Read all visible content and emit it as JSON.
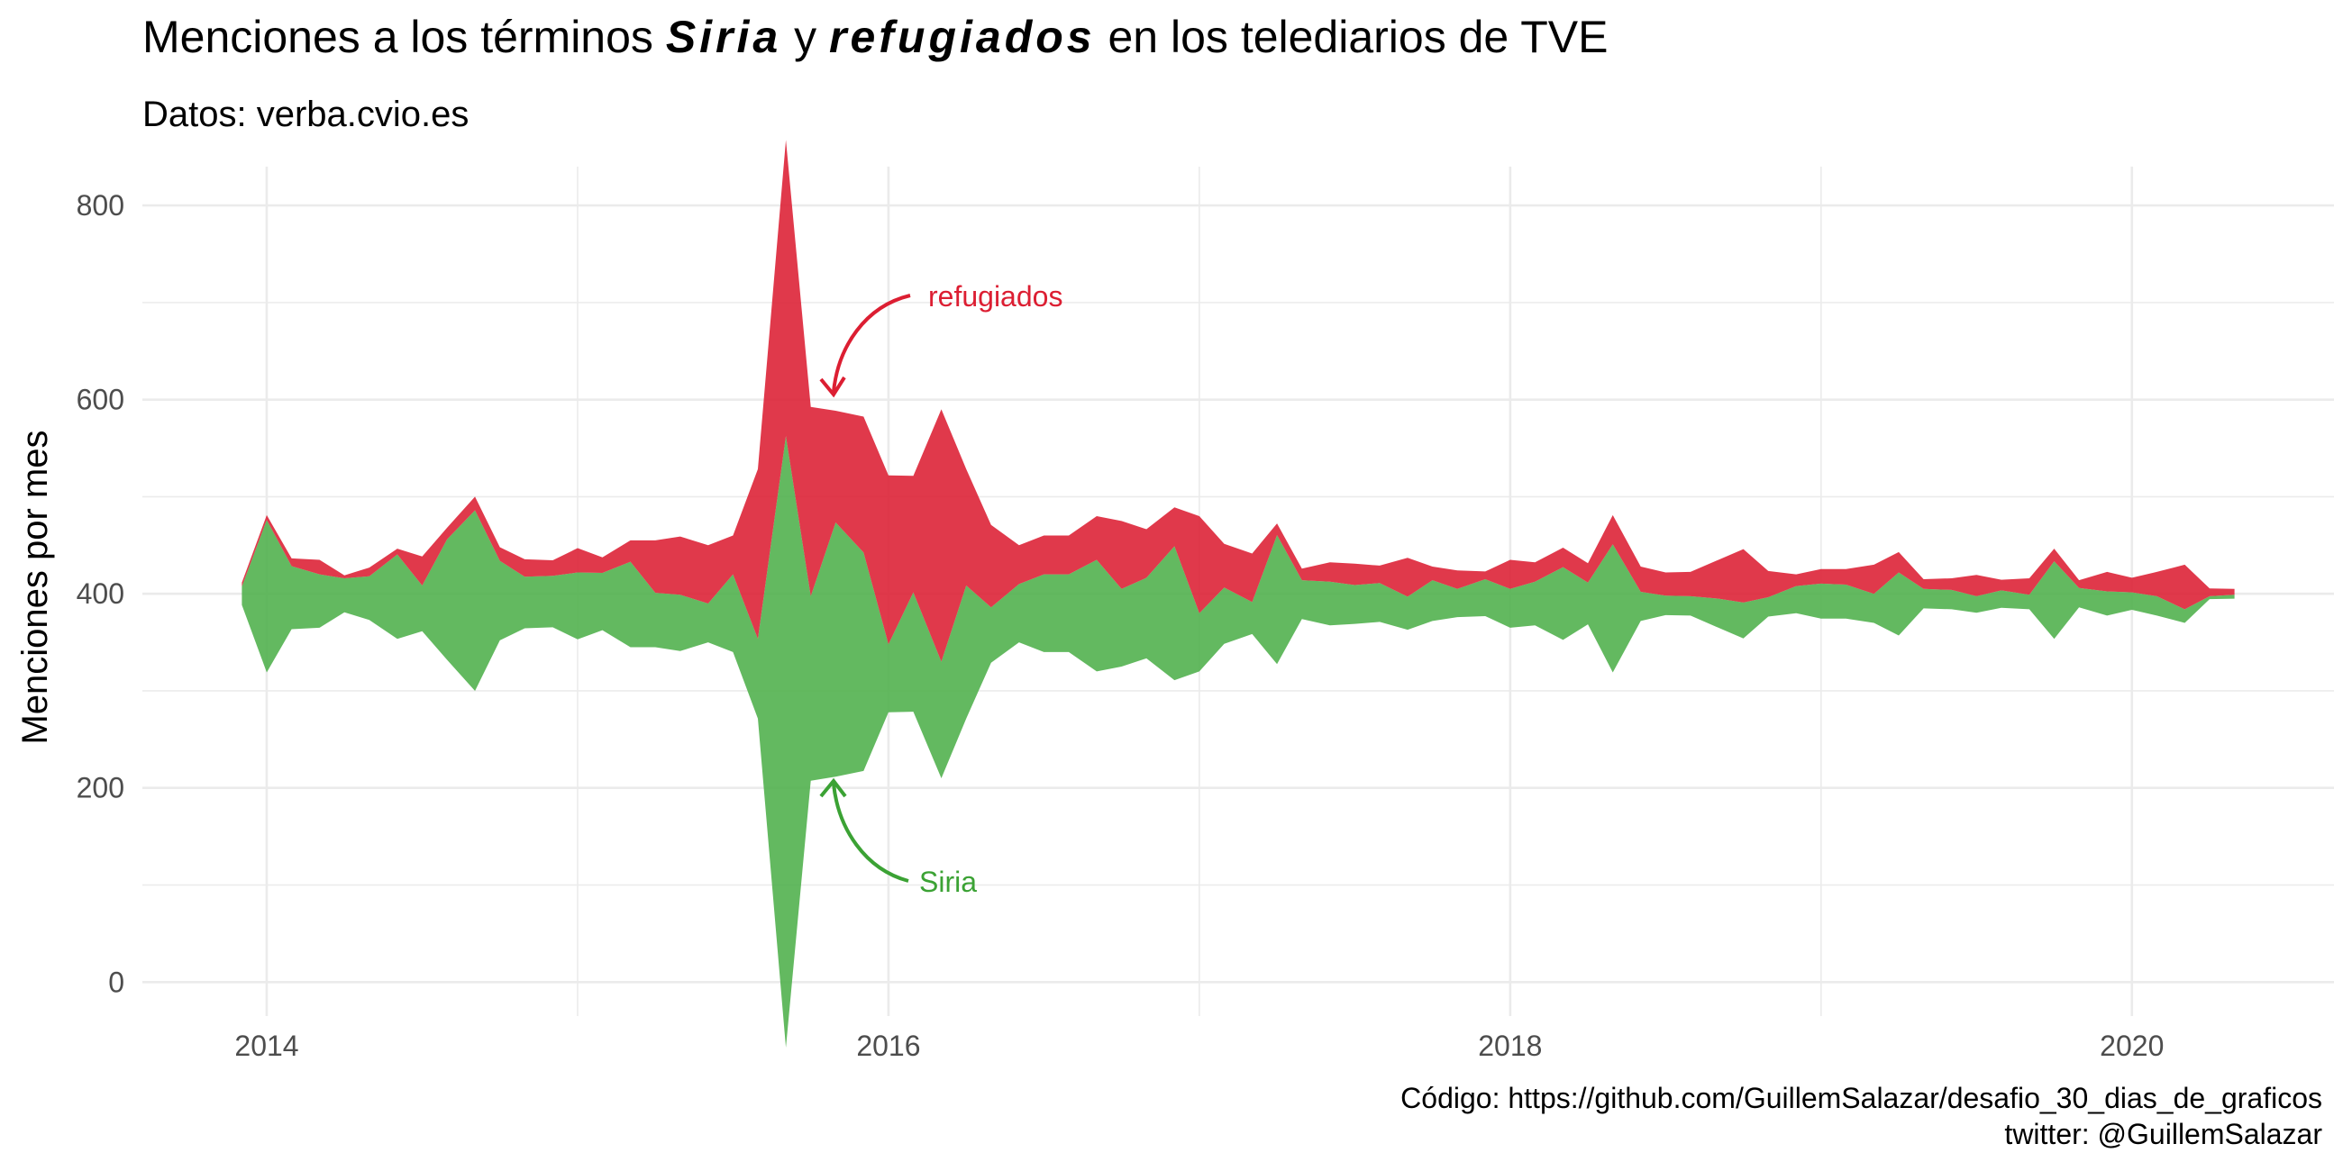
{
  "title": {
    "prefix": "Menciones a los términos ",
    "term1": "Siria",
    "middle": " y ",
    "term2": "refugiados",
    "suffix": " en los telediarios de TVE"
  },
  "subtitle": "Datos: verba.cvio.es",
  "caption": {
    "line1": "Código: https://github.com/GuillemSalazar/desafio_30_dias_de_graficos",
    "line2": "twitter: @GuillemSalazar"
  },
  "colors": {
    "siria": "#4DAF4A",
    "refugiados": "#DC1E32",
    "grid": "#EBEBEB"
  },
  "chart_data": {
    "type": "area",
    "subtype": "streamgraph",
    "ylabel": "Menciones por mes",
    "xlabel": "",
    "x_ticks": [
      "2014",
      "2016",
      "2018",
      "2020"
    ],
    "y_ticks": [
      "0",
      "200",
      "400",
      "600",
      "800"
    ],
    "xlim": [
      2013.6,
      2020.65
    ],
    "ylim": [
      -35,
      840
    ],
    "baseline_center": 400,
    "grid": true,
    "annotations": [
      {
        "label": "refugiados",
        "series": "refugiados"
      },
      {
        "label": "Siria",
        "series": "Siria"
      }
    ],
    "x": [
      2013.92,
      2014.0,
      2014.08,
      2014.17,
      2014.25,
      2014.33,
      2014.42,
      2014.5,
      2014.58,
      2014.67,
      2014.75,
      2014.83,
      2014.92,
      2015.0,
      2015.08,
      2015.17,
      2015.25,
      2015.33,
      2015.42,
      2015.5,
      2015.58,
      2015.67,
      2015.75,
      2015.83,
      2015.92,
      2016.0,
      2016.08,
      2016.17,
      2016.25,
      2016.33,
      2016.42,
      2016.5,
      2016.58,
      2016.67,
      2016.75,
      2016.83,
      2016.92,
      2017.0,
      2017.08,
      2017.17,
      2017.25,
      2017.33,
      2017.42,
      2017.5,
      2017.58,
      2017.67,
      2017.75,
      2017.83,
      2017.92,
      2018.0,
      2018.08,
      2018.17,
      2018.25,
      2018.33,
      2018.42,
      2018.5,
      2018.58,
      2018.67,
      2018.75,
      2018.83,
      2018.92,
      2019.0,
      2019.08,
      2019.17,
      2019.25,
      2019.33,
      2019.42,
      2019.5,
      2019.58,
      2019.67,
      2019.75,
      2019.83,
      2019.92,
      2020.0,
      2020.08,
      2020.17,
      2020.25,
      2020.33
    ],
    "series": [
      {
        "name": "Siria",
        "values": [
          19,
          157,
          65,
          55,
          35,
          45,
          87,
          47,
          124,
          186,
          82,
          53,
          53,
          69,
          59,
          88,
          56,
          58,
          40,
          80,
          82,
          630,
          190,
          262,
          225,
          70,
          123,
          120,
          137,
          57,
          60,
          80,
          80,
          115,
          80,
          83,
          138,
          60,
          58,
          33,
          133,
          40,
          45,
          40,
          40,
          34,
          42,
          29,
          38,
          40,
          45,
          75,
          43,
          132,
          30,
          20,
          20,
          30,
          37,
          20,
          28,
          36,
          35,
          30,
          65,
          20,
          20,
          17,
          18,
          15,
          80,
          20,
          25,
          18,
          20,
          14,
          3,
          4
        ]
      },
      {
        "name": "refugiados",
        "values": [
          4,
          5,
          8,
          15,
          3,
          9,
          6,
          30,
          12,
          14,
          14,
          18,
          16,
          25,
          16,
          22,
          54,
          60,
          60,
          40,
          175,
          305,
          195,
          115,
          140,
          174,
          120,
          260,
          120,
          85,
          40,
          40,
          40,
          45,
          70,
          50,
          40,
          100,
          45,
          50,
          12,
          12,
          20,
          22,
          18,
          40,
          14,
          19,
          8,
          30,
          20,
          20,
          20,
          30,
          26,
          24,
          25,
          40,
          55,
          27,
          12,
          15,
          16,
          30,
          21,
          10,
          12,
          22,
          11,
          17,
          13,
          8,
          20,
          15,
          25,
          46,
          8,
          6
        ]
      }
    ]
  }
}
